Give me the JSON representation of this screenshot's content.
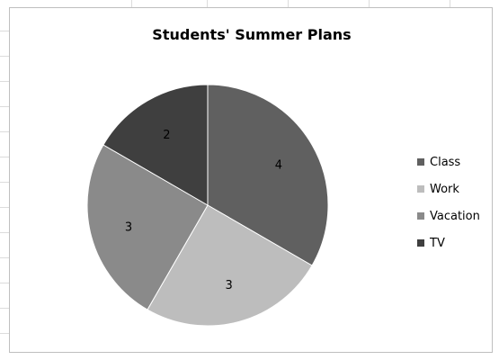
{
  "chart_data": {
    "type": "pie",
    "title": "Students' Summer Plans",
    "categories": [
      "Class",
      "Work",
      "Vacation",
      "TV"
    ],
    "values": [
      4,
      3,
      3,
      2
    ],
    "data_labels": [
      "4",
      "3",
      "3",
      "2"
    ],
    "colors": [
      "#606060",
      "#bdbdbd",
      "#8a8a8a",
      "#3f3f3f"
    ],
    "legend_position": "right",
    "start_angle": "12 o'clock",
    "direction": "clockwise"
  }
}
